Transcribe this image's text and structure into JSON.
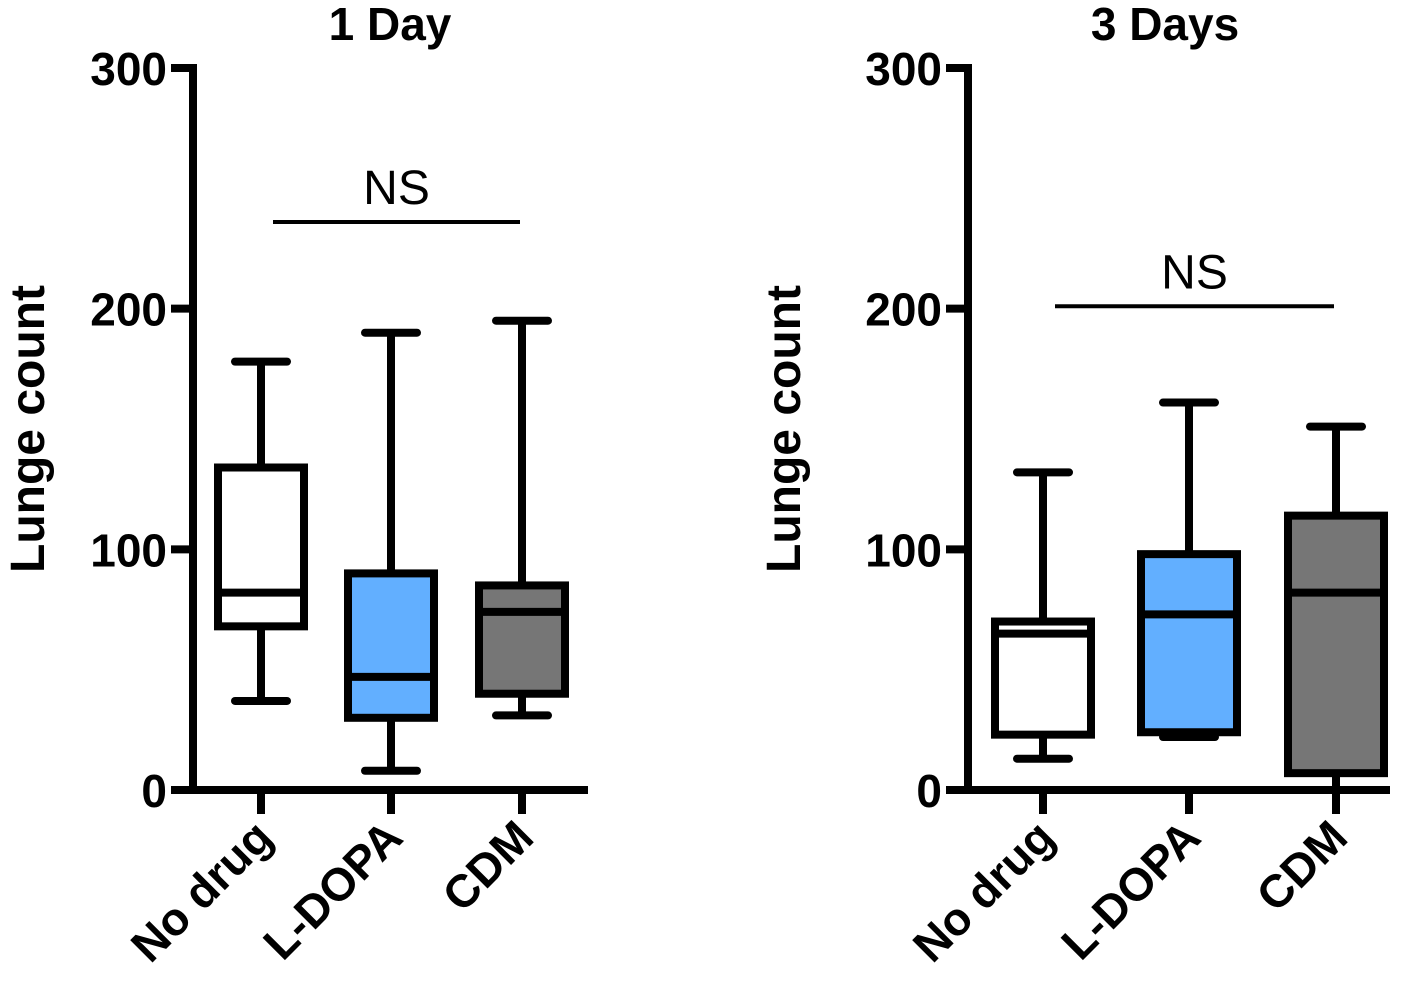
{
  "chart_data": [
    {
      "type": "box",
      "title": "1 Day",
      "xlabel": "",
      "ylabel": "Lunge count",
      "ylim": [
        0,
        300
      ],
      "yticks": [
        0,
        100,
        200,
        300
      ],
      "categories": [
        "No drug",
        "L-DOPA",
        "CDM"
      ],
      "fill_colors": [
        "#ffffff",
        "#62afff",
        "#767676"
      ],
      "boxes": [
        {
          "name": "No drug",
          "min": 37,
          "q1": 68,
          "median": 82,
          "q3": 134,
          "max": 178
        },
        {
          "name": "L-DOPA",
          "min": 8,
          "q1": 30,
          "median": 47,
          "q3": 90,
          "max": 190
        },
        {
          "name": "CDM",
          "min": 31,
          "q1": 40,
          "median": 74,
          "q3": 85,
          "max": 195
        }
      ],
      "significance": {
        "label": "NS",
        "from": 0,
        "to": 2,
        "y": 236
      }
    },
    {
      "type": "box",
      "title": "3 Days",
      "xlabel": "",
      "ylabel": "Lunge count",
      "ylim": [
        0,
        300
      ],
      "yticks": [
        0,
        100,
        200,
        300
      ],
      "categories": [
        "No drug",
        "L-DOPA",
        "CDM"
      ],
      "fill_colors": [
        "#ffffff",
        "#62afff",
        "#767676"
      ],
      "boxes": [
        {
          "name": "No drug",
          "min": 13,
          "q1": 23,
          "median": 65,
          "q3": 70,
          "max": 132
        },
        {
          "name": "L-DOPA",
          "min": 22,
          "q1": 24,
          "median": 73,
          "q3": 98,
          "max": 161
        },
        {
          "name": "CDM",
          "min": 0,
          "q1": 7,
          "median": 82,
          "q3": 114,
          "max": 151
        }
      ],
      "significance": {
        "label": "NS",
        "from": 0,
        "to": 2,
        "y": 201
      }
    }
  ]
}
